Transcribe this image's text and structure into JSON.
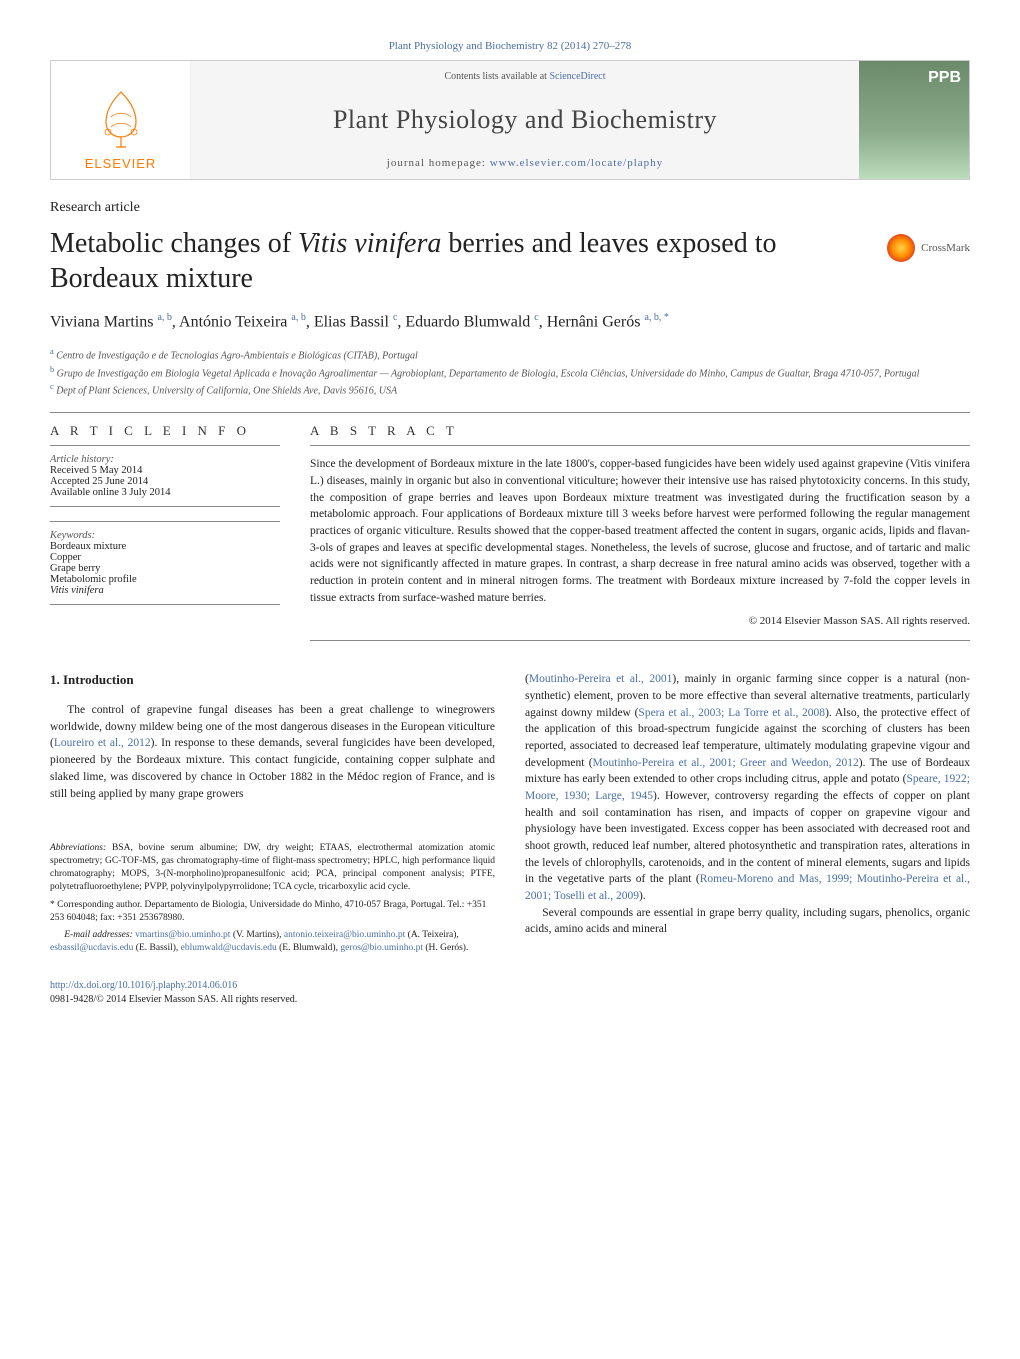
{
  "header": {
    "citation": "Plant Physiology and Biochemistry 82 (2014) 270–278",
    "contents_prefix": "Contents lists available at ",
    "contents_link": "ScienceDirect",
    "journal": "Plant Physiology and Biochemistry",
    "homepage_prefix": "journal homepage: ",
    "homepage_url": "www.elsevier.com/locate/plaphy",
    "publisher": "ELSEVIER",
    "cover_label": "PPB"
  },
  "article": {
    "type": "Research article",
    "title_html": "Metabolic changes of <em>Vitis vinifera</em> berries and leaves exposed to Bordeaux mixture",
    "crossmark": "CrossMark",
    "authors_html": "Viviana Martins <sup>a, b</sup>, António Teixeira <sup>a, b</sup>, Elias Bassil <sup>c</sup>, Eduardo Blumwald <sup>c</sup>, Hernâni Gerós <sup>a, b, *</sup>",
    "affiliations": [
      {
        "sup": "a",
        "text": "Centro de Investigação e de Tecnologias Agro-Ambientais e Biológicas (CITAB), Portugal"
      },
      {
        "sup": "b",
        "text": "Grupo de Investigação em Biologia Vegetal Aplicada e Inovação Agroalimentar — Agrobioplant, Departamento de Biologia, Escola Ciências, Universidade do Minho, Campus de Gualtar, Braga 4710-057, Portugal"
      },
      {
        "sup": "c",
        "text": "Dept of Plant Sciences, University of California, One Shields Ave, Davis 95616, USA"
      }
    ]
  },
  "info": {
    "heading": "A R T I C L E   I N F O",
    "history_label": "Article history:",
    "history": [
      "Received 5 May 2014",
      "Accepted 25 June 2014",
      "Available online 3 July 2014"
    ],
    "keywords_label": "Keywords:",
    "keywords": [
      "Bordeaux mixture",
      "Copper",
      "Grape berry",
      "Metabolomic profile",
      "Vitis vinifera"
    ]
  },
  "abstract": {
    "heading": "A B S T R A C T",
    "text": "Since the development of Bordeaux mixture in the late 1800's, copper-based fungicides have been widely used against grapevine (Vitis vinifera L.) diseases, mainly in organic but also in conventional viticulture; however their intensive use has raised phytotoxicity concerns. In this study, the composition of grape berries and leaves upon Bordeaux mixture treatment was investigated during the fructification season by a metabolomic approach. Four applications of Bordeaux mixture till 3 weeks before harvest were performed following the regular management practices of organic viticulture. Results showed that the copper-based treatment affected the content in sugars, organic acids, lipids and flavan-3-ols of grapes and leaves at specific developmental stages. Nonetheless, the levels of sucrose, glucose and fructose, and of tartaric and malic acids were not significantly affected in mature grapes. In contrast, a sharp decrease in free natural amino acids was observed, together with a reduction in protein content and in mineral nitrogen forms. The treatment with Bordeaux mixture increased by 7-fold the copper levels in tissue extracts from surface-washed mature berries.",
    "copyright": "© 2014 Elsevier Masson SAS. All rights reserved."
  },
  "intro": {
    "heading": "1. Introduction",
    "col1_html": "The control of grapevine fungal diseases has been a great challenge to winegrowers worldwide, downy mildew being one of the most dangerous diseases in the European viticulture (<span class='link'>Loureiro et al., 2012</span>). In response to these demands, several fungicides have been developed, pioneered by the Bordeaux mixture. This contact fungicide, containing copper sulphate and slaked lime, was discovered by chance in October 1882 in the Médoc region of France, and is still being applied by many grape growers",
    "col2_p1_html": "(<span class='link'>Moutinho-Pereira et al., 2001</span>), mainly in organic farming since copper is a natural (non-synthetic) element, proven to be more effective than several alternative treatments, particularly against downy mildew (<span class='link'>Spera et al., 2003; La Torre et al., 2008</span>). Also, the protective effect of the application of this broad-spectrum fungicide against the scorching of clusters has been reported, associated to decreased leaf temperature, ultimately modulating grapevine vigour and development (<span class='link'>Moutinho-Pereira et al., 2001; Greer and Weedon, 2012</span>). The use of Bordeaux mixture has early been extended to other crops including citrus, apple and potato (<span class='link'>Speare, 1922; Moore, 1930; Large, 1945</span>). However, controversy regarding the effects of copper on plant health and soil contamination has risen, and impacts of copper on grapevine vigour and physiology have been investigated. Excess copper has been associated with decreased root and shoot growth, reduced leaf number, altered photosynthetic and transpiration rates, alterations in the levels of chlorophylls, carotenoids, and in the content of mineral elements, sugars and lipids in the vegetative parts of the plant (<span class='link'>Romeu-Moreno and Mas, 1999; Moutinho-Pereira et al., 2001; Toselli et al., 2009</span>).",
    "col2_p2_html": "Several compounds are essential in grape berry quality, including sugars, phenolics, organic acids, amino acids and mineral"
  },
  "footnotes": {
    "abbrev_label": "Abbreviations:",
    "abbrev_text": " BSA, bovine serum albumine; DW, dry weight; ETAAS, electrothermal atomization atomic spectrometry; GC-TOF-MS, gas chromatography-time of flight-mass spectrometry; HPLC, high performance liquid chromatography; MOPS, 3-(N-morpholino)propanesulfonic acid; PCA, principal component analysis; PTFE, polytetrafluoroethylene; PVPP, polyvinylpolypyrrolidone; TCA cycle, tricarboxylic acid cycle.",
    "corr_text": "* Corresponding author. Departamento de Biologia, Universidade do Minho, 4710-057 Braga, Portugal. Tel.: +351 253 604048; fax: +351 253678980.",
    "emails_label": "E-mail addresses:",
    "emails_html": " <span class='link'>vmartins@bio.uminho.pt</span> (V. Martins), <span class='link'>antonio.teixeira@bio.uminho.pt</span> (A. Teixeira), <span class='link'>esbassil@ucdavis.edu</span> (E. Bassil), <span class='link'>eblumwald@ucdavis.edu</span> (E. Blumwald), <span class='link'>geros@bio.uminho.pt</span> (H. Gerós)."
  },
  "footer": {
    "doi": "http://dx.doi.org/10.1016/j.plaphy.2014.06.016",
    "issn_copyright": "0981-9428/© 2014 Elsevier Masson SAS. All rights reserved."
  }
}
